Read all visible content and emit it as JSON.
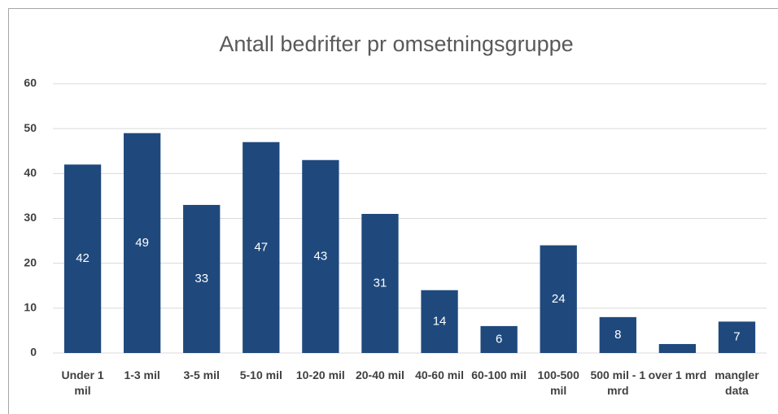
{
  "chart_data": {
    "type": "bar",
    "title": "Antall bedrifter  pr omsetningsgruppe",
    "categories": [
      "Under 1 mil",
      "1-3 mil",
      "3-5 mil",
      "5-10 mil",
      "10-20 mil",
      "20-40 mil",
      "40-60 mil",
      "60-100 mil",
      "100-500 mil",
      "500 mil - 1 mrd",
      "over 1 mrd",
      "mangler data"
    ],
    "values": [
      42,
      49,
      33,
      47,
      43,
      31,
      14,
      6,
      24,
      8,
      2,
      7
    ],
    "value_labels": [
      "42",
      "49",
      "33",
      "47",
      "43",
      "31",
      "14",
      "6",
      "24",
      "8",
      null,
      "7"
    ],
    "color": "#1f497d",
    "ylim": [
      0,
      60
    ],
    "yticks": [
      0,
      10,
      20,
      30,
      40,
      50,
      60
    ],
    "grid": true
  }
}
